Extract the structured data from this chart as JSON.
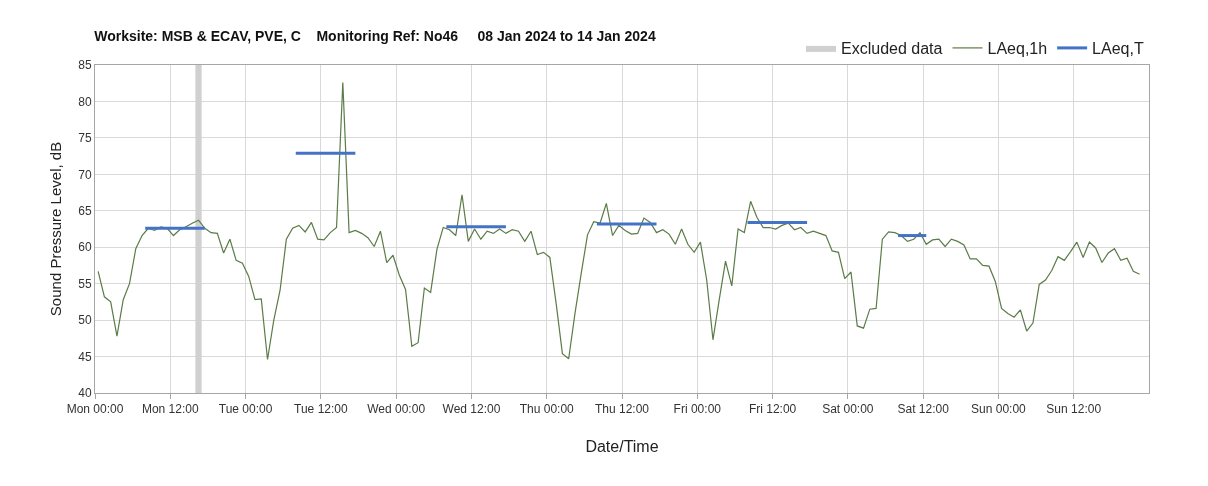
{
  "chart_data": {
    "type": "line",
    "title": "Worksite: MSB & ECAV, PVE, C    Monitoring Ref: No46     08 Jan 2024 to 14 Jan 2024",
    "xlabel": "Date/Time",
    "ylabel": "Sound Pressure Level, dB",
    "series": [
      {
        "name": "LAeq,1h",
        "color": "#5b7b47",
        "x": [
          "2024-01-08T00:30",
          "2024-01-08T01:30",
          "2024-01-08T02:30",
          "2024-01-08T03:30",
          "2024-01-08T04:30",
          "2024-01-08T05:30",
          "2024-01-08T06:30",
          "2024-01-08T07:30",
          "2024-01-08T08:30",
          "2024-01-08T09:30",
          "2024-01-08T10:30",
          "2024-01-08T11:30",
          "2024-01-08T12:30",
          "2024-01-08T13:30",
          "2024-01-08T14:30",
          "2024-01-08T15:30",
          "2024-01-08T16:30",
          "2024-01-08T17:30",
          "2024-01-08T18:30",
          "2024-01-08T19:30",
          "2024-01-08T20:30",
          "2024-01-08T21:30",
          "2024-01-08T22:30",
          "2024-01-08T23:30",
          "2024-01-09T00:30",
          "2024-01-09T01:30",
          "2024-01-09T02:30",
          "2024-01-09T03:30",
          "2024-01-09T04:30",
          "2024-01-09T05:30",
          "2024-01-09T06:30",
          "2024-01-09T07:30",
          "2024-01-09T08:30",
          "2024-01-09T09:30",
          "2024-01-09T10:30",
          "2024-01-09T11:30",
          "2024-01-09T12:30",
          "2024-01-09T13:30",
          "2024-01-09T14:30",
          "2024-01-09T15:30",
          "2024-01-09T16:30",
          "2024-01-09T17:30",
          "2024-01-09T18:30",
          "2024-01-09T19:30",
          "2024-01-09T20:30",
          "2024-01-09T21:30",
          "2024-01-09T22:30",
          "2024-01-09T23:30",
          "2024-01-10T00:30",
          "2024-01-10T01:30",
          "2024-01-10T02:30",
          "2024-01-10T03:30",
          "2024-01-10T04:30",
          "2024-01-10T05:30",
          "2024-01-10T06:30",
          "2024-01-10T07:30",
          "2024-01-10T08:30",
          "2024-01-10T09:30",
          "2024-01-10T10:30",
          "2024-01-10T11:30",
          "2024-01-10T12:30",
          "2024-01-10T13:30",
          "2024-01-10T14:30",
          "2024-01-10T15:30",
          "2024-01-10T16:30",
          "2024-01-10T17:30",
          "2024-01-10T18:30",
          "2024-01-10T19:30",
          "2024-01-10T20:30",
          "2024-01-10T21:30",
          "2024-01-10T22:30",
          "2024-01-10T23:30",
          "2024-01-11T00:30",
          "2024-01-11T01:30",
          "2024-01-11T02:30",
          "2024-01-11T03:30",
          "2024-01-11T04:30",
          "2024-01-11T05:30",
          "2024-01-11T06:30",
          "2024-01-11T07:30",
          "2024-01-11T08:30",
          "2024-01-11T09:30",
          "2024-01-11T10:30",
          "2024-01-11T11:30",
          "2024-01-11T12:30",
          "2024-01-11T13:30",
          "2024-01-11T14:30",
          "2024-01-11T15:30",
          "2024-01-11T16:30",
          "2024-01-11T17:30",
          "2024-01-11T18:30",
          "2024-01-11T19:30",
          "2024-01-11T20:30",
          "2024-01-11T21:30",
          "2024-01-11T22:30",
          "2024-01-11T23:30",
          "2024-01-12T00:30",
          "2024-01-12T01:30",
          "2024-01-12T02:30",
          "2024-01-12T03:30",
          "2024-01-12T04:30",
          "2024-01-12T05:30",
          "2024-01-12T06:30",
          "2024-01-12T07:30",
          "2024-01-12T08:30",
          "2024-01-12T09:30",
          "2024-01-12T10:30",
          "2024-01-12T11:30",
          "2024-01-12T12:30",
          "2024-01-12T13:30",
          "2024-01-12T14:30",
          "2024-01-12T15:30",
          "2024-01-12T16:30",
          "2024-01-12T17:30",
          "2024-01-12T18:30",
          "2024-01-12T19:30",
          "2024-01-12T20:30",
          "2024-01-12T21:30",
          "2024-01-12T22:30",
          "2024-01-12T23:30",
          "2024-01-13T00:30",
          "2024-01-13T01:30",
          "2024-01-13T02:30",
          "2024-01-13T03:30",
          "2024-01-13T04:30",
          "2024-01-13T05:30",
          "2024-01-13T06:30",
          "2024-01-13T07:30",
          "2024-01-13T08:30",
          "2024-01-13T09:30",
          "2024-01-13T10:30",
          "2024-01-13T11:30",
          "2024-01-13T12:30",
          "2024-01-13T13:30",
          "2024-01-13T14:30",
          "2024-01-13T15:30",
          "2024-01-13T16:30",
          "2024-01-13T17:30",
          "2024-01-13T18:30",
          "2024-01-13T19:30",
          "2024-01-13T20:30",
          "2024-01-13T21:30",
          "2024-01-13T22:30",
          "2024-01-13T23:30",
          "2024-01-14T00:30",
          "2024-01-14T01:30",
          "2024-01-14T02:30",
          "2024-01-14T03:30",
          "2024-01-14T04:30",
          "2024-01-14T05:30",
          "2024-01-14T06:30",
          "2024-01-14T07:30",
          "2024-01-14T08:30",
          "2024-01-14T09:30",
          "2024-01-14T10:30",
          "2024-01-14T11:30",
          "2024-01-14T12:30",
          "2024-01-14T13:30",
          "2024-01-14T14:30",
          "2024-01-14T15:30",
          "2024-01-14T16:30",
          "2024-01-14T17:30",
          "2024-01-14T18:30",
          "2024-01-14T19:30",
          "2024-01-14T20:30",
          "2024-01-14T21:30",
          "2024-01-14T22:30"
        ],
        "values": [
          56.7,
          53.2,
          52.5,
          47.8,
          52.8,
          55.0,
          59.8,
          61.6,
          62.6,
          62.3,
          62.8,
          62.6,
          61.6,
          62.4,
          62.8,
          63.3,
          63.7,
          62.6,
          62.0,
          61.9,
          59.2,
          61.1,
          58.2,
          57.8,
          56.0,
          52.8,
          52.9,
          44.6,
          50.0,
          54.1,
          61.1,
          62.6,
          63.0,
          62.1,
          63.4,
          61.1,
          61.0,
          62.0,
          62.7,
          82.6,
          62.0,
          62.3,
          61.9,
          61.3,
          60.1,
          62.2,
          57.9,
          58.9,
          56.2,
          54.2,
          46.4,
          46.9,
          54.4,
          53.8,
          59.7,
          62.7,
          62.4,
          61.6,
          67.2,
          60.8,
          62.5,
          61.1,
          62.2,
          61.9,
          62.5,
          61.9,
          62.4,
          62.2,
          60.8,
          62.2,
          59.0,
          59.3,
          58.6,
          52.3,
          45.4,
          44.7,
          50.9,
          56.4,
          61.7,
          63.5,
          63.3,
          66.0,
          61.6,
          63.0,
          62.3,
          61.8,
          61.9,
          64.0,
          63.4,
          62.0,
          62.4,
          61.8,
          60.4,
          62.5,
          60.4,
          59.3,
          60.7,
          55.5,
          47.3,
          52.8,
          58.1,
          54.7,
          62.5,
          62.0,
          66.3,
          64.1,
          62.7,
          62.7,
          62.5,
          63.0,
          63.3,
          62.4,
          62.7,
          61.9,
          62.2,
          61.9,
          61.6,
          59.5,
          59.3,
          55.7,
          56.6,
          49.2,
          48.9,
          51.5,
          51.6,
          61.1,
          62.1,
          62.0,
          61.6,
          60.8,
          61.1,
          62.0,
          60.4,
          61.0,
          61.1,
          60.1,
          61.1,
          60.8,
          60.3,
          58.4,
          58.4,
          57.5,
          57.4,
          55.3,
          51.6,
          50.9,
          50.4,
          51.4,
          48.5,
          49.6,
          54.9,
          55.5,
          56.8,
          58.7,
          58.2,
          59.4,
          60.7,
          58.6,
          60.7,
          59.9,
          57.9,
          59.2,
          59.8,
          58.2,
          58.5,
          56.7,
          56.3
        ]
      },
      {
        "name": "LAeq,T",
        "color": "#4472c4",
        "x": [
          "2024-01-08T08:00",
          "2024-01-08T17:30",
          "2024-01-09T00:00",
          "2024-01-09T08:00",
          "2024-01-09T17:30",
          "2024-01-10T00:00",
          "2024-01-10T08:00",
          "2024-01-10T17:30",
          "2024-01-11T00:00",
          "2024-01-11T08:00",
          "2024-01-11T17:30",
          "2024-01-12T00:00",
          "2024-01-12T08:00",
          "2024-01-12T17:30",
          "2024-01-13T00:00",
          "2024-01-13T08:00",
          "2024-01-13T12:30"
        ],
        "values": [
          62.6,
          62.6,
          null,
          72.9,
          72.9,
          null,
          62.8,
          62.8,
          null,
          63.2,
          63.2,
          null,
          63.4,
          63.4,
          null,
          61.6,
          61.6
        ]
      }
    ],
    "bands": [
      {
        "axis": "x",
        "from": "2024-01-08T16:00",
        "to": "2024-01-08T17:00",
        "label": "Excluded data",
        "color": "#d0d0d0"
      }
    ],
    "xlim": [
      "2024-01-08T00:00",
      "2024-01-15T00:00"
    ],
    "xticks": [
      {
        "value": "2024-01-08T00:00",
        "label": "Mon 00:00"
      },
      {
        "value": "2024-01-08T12:00",
        "label": "Mon 12:00"
      },
      {
        "value": "2024-01-09T00:00",
        "label": "Tue 00:00"
      },
      {
        "value": "2024-01-09T12:00",
        "label": "Tue 12:00"
      },
      {
        "value": "2024-01-10T00:00",
        "label": "Wed 00:00"
      },
      {
        "value": "2024-01-10T12:00",
        "label": "Wed 12:00"
      },
      {
        "value": "2024-01-11T00:00",
        "label": "Thu 00:00"
      },
      {
        "value": "2024-01-11T12:00",
        "label": "Thu 12:00"
      },
      {
        "value": "2024-01-12T00:00",
        "label": "Fri 00:00"
      },
      {
        "value": "2024-01-12T12:00",
        "label": "Fri 12:00"
      },
      {
        "value": "2024-01-13T00:00",
        "label": "Sat 00:00"
      },
      {
        "value": "2024-01-13T12:00",
        "label": "Sat 12:00"
      },
      {
        "value": "2024-01-14T00:00",
        "label": "Sun 00:00"
      },
      {
        "value": "2024-01-14T12:00",
        "label": "Sun 12:00"
      }
    ],
    "ylim": [
      40,
      85
    ],
    "yticks": [
      40,
      45,
      50,
      55,
      60,
      65,
      70,
      75,
      80,
      85
    ],
    "grid": true,
    "legend": "top right",
    "marker": "none"
  }
}
